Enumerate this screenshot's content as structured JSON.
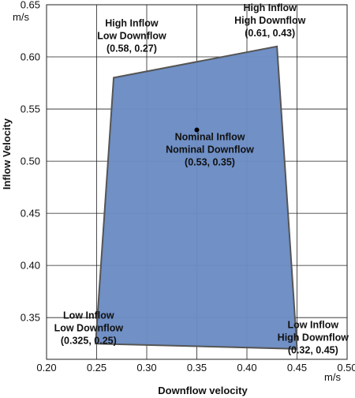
{
  "chart_data": {
    "type": "scatter",
    "title": "",
    "xlabel": "Downflow velocity",
    "ylabel": "Inflow Velocity",
    "x_unit": "m/s",
    "y_unit": "m/s",
    "xlim": [
      0.2,
      0.5
    ],
    "ylim": [
      0.31,
      0.65
    ],
    "x_ticks": [
      0.2,
      0.25,
      0.3,
      0.35,
      0.4,
      0.45,
      0.5
    ],
    "x_tick_labels": [
      "0.20",
      "0.25",
      "0.30",
      "0.35",
      "0.40",
      "0.45",
      "0.50"
    ],
    "y_ticks": [
      0.35,
      0.4,
      0.45,
      0.5,
      0.55,
      0.6,
      0.65
    ],
    "y_tick_labels": [
      "0.35",
      "0.40",
      "0.45",
      "0.50",
      "0.55",
      "0.60",
      "0.65"
    ],
    "grid": true,
    "fill_color": "#6b8cc4",
    "edge_color": "#555555",
    "polygon": [
      {
        "x": 0.267,
        "y": 0.58
      },
      {
        "x": 0.43,
        "y": 0.61
      },
      {
        "x": 0.45,
        "y": 0.32
      },
      {
        "x": 0.249,
        "y": 0.325
      }
    ],
    "point": {
      "x": 0.35,
      "y": 0.53
    },
    "annotations": [
      {
        "lines": [
          "High Inflow",
          "Low Downflow",
          "(0.58, 0.27)"
        ],
        "x": 0.285,
        "y": 0.629
      },
      {
        "lines": [
          "High Inflow",
          "High Downflow",
          "(0.61, 0.43)"
        ],
        "x": 0.423,
        "y": 0.644
      },
      {
        "lines": [
          "Nominal Inflow",
          "Nominal Downflow",
          "(0.53, 0.35)"
        ],
        "x": 0.363,
        "y": 0.52
      },
      {
        "lines": [
          "Low Inflow",
          "Low Downflow",
          "(0.325, 0.25)"
        ],
        "x": 0.242,
        "y": 0.349
      },
      {
        "lines": [
          "Low Inflow",
          "High Downflow",
          "(0.32, 0.45)"
        ],
        "x": 0.466,
        "y": 0.34
      }
    ]
  }
}
